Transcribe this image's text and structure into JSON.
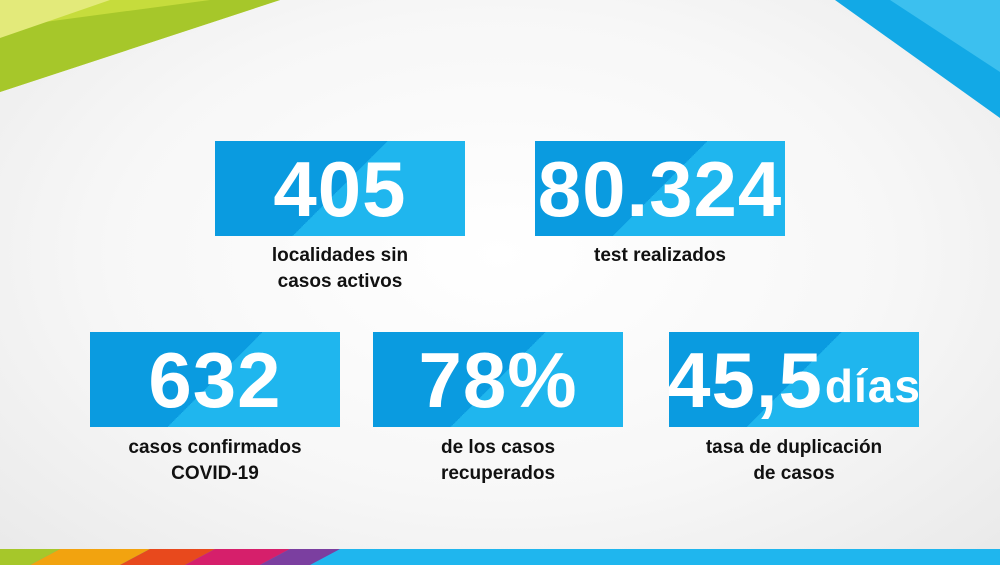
{
  "colors": {
    "box_dark": "#0a9be0",
    "box_light": "#1fb6ee",
    "accent_green": "#b5d334",
    "accent_cyan": "#1fb6ee",
    "label_text": "#111111"
  },
  "stats": [
    {
      "value": "405",
      "unit": "",
      "label": "localidades sin\ncasos activos"
    },
    {
      "value": "80.324",
      "unit": "",
      "label": "test realizados"
    },
    {
      "value": "632",
      "unit": "",
      "label": "casos confirmados\nCOVID-19"
    },
    {
      "value": "78%",
      "unit": "",
      "label": "de los casos\nrecuperados"
    },
    {
      "value": "45,5",
      "unit": "días",
      "label": "tasa de duplicación\nde casos"
    }
  ]
}
